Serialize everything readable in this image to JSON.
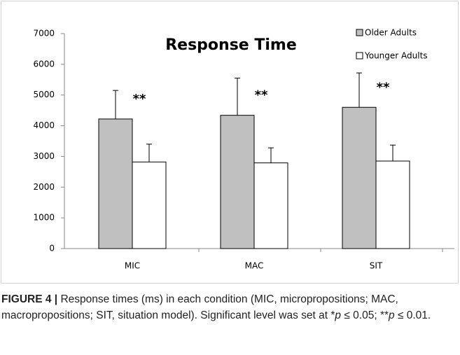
{
  "chart_data": {
    "type": "bar",
    "title": "Response Time",
    "categories": [
      "MIC",
      "MAC",
      "SIT"
    ],
    "series": [
      {
        "name": "Older Adults",
        "color": "#c0c0c0",
        "values": [
          4220,
          4340,
          4600
        ],
        "errors": [
          930,
          1210,
          1120
        ]
      },
      {
        "name": "Younger Adults",
        "color": "#ffffff",
        "values": [
          2820,
          2790,
          2850
        ],
        "errors": [
          580,
          490,
          520
        ]
      }
    ],
    "annotations": [
      "**",
      "**",
      "**"
    ],
    "ylim": [
      0,
      7000
    ],
    "yticks": [
      0,
      1000,
      2000,
      3000,
      4000,
      5000,
      6000,
      7000
    ],
    "legend": "top-right"
  },
  "caption": {
    "label": "FIGURE 4 |",
    "segments": [
      {
        "text": " Response times (ms) in each condition (MIC, micropropositions; MAC, macropropositions; SIT, situation model). Significant level was set at *",
        "italic": false
      },
      {
        "text": "p",
        "italic": true
      },
      {
        "text": " ≤ 0.05; **",
        "italic": false
      },
      {
        "text": "p",
        "italic": true
      },
      {
        "text": " ≤ 0.01.",
        "italic": false
      }
    ]
  }
}
